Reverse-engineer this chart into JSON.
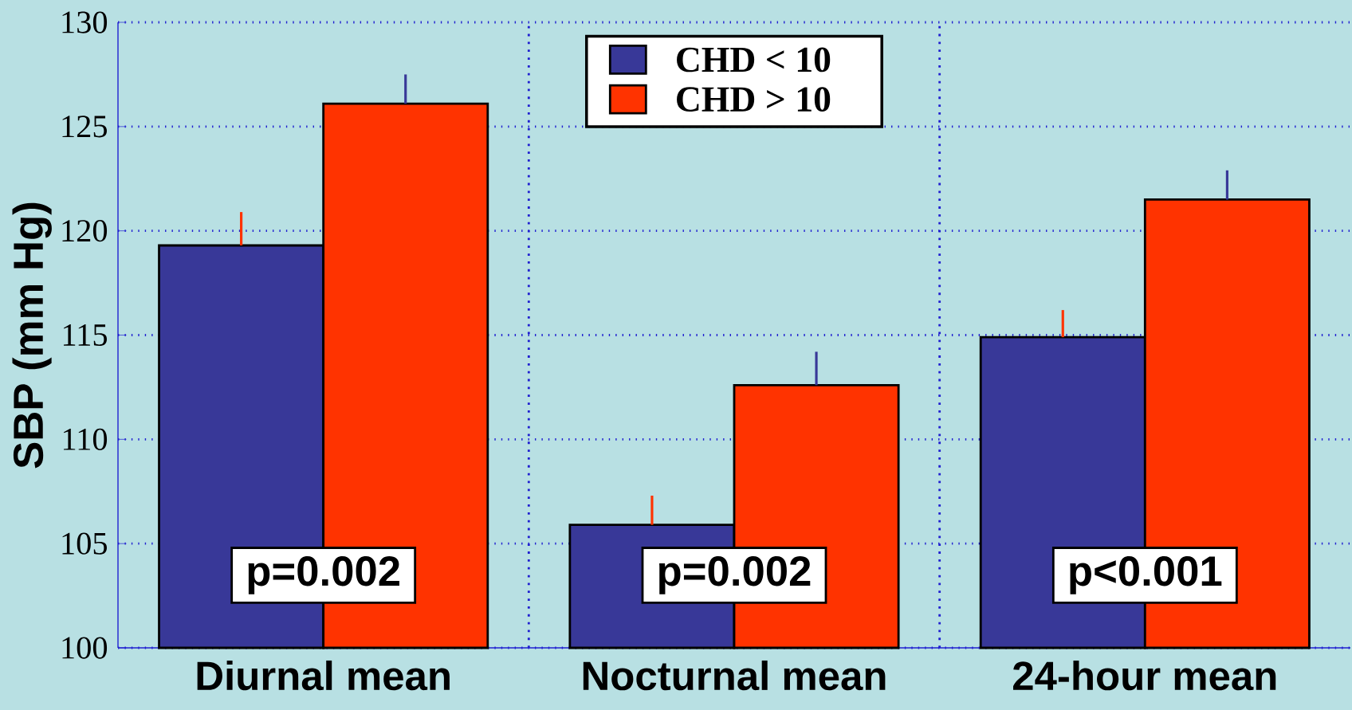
{
  "chart_data": {
    "type": "bar",
    "ylabel": "SBP (mm Hg)",
    "categories": [
      "Diurnal mean",
      "Nocturnal mean",
      "24-hour mean"
    ],
    "series": [
      {
        "name": "CHD < 10",
        "color": "#383898",
        "values": [
          119.3,
          105.9,
          114.9
        ],
        "errors": [
          [
            119.3,
            120.9
          ],
          [
            105.9,
            107.3
          ],
          [
            114.9,
            116.2
          ]
        ]
      },
      {
        "name": "CHD > 10",
        "color": "#ff3300",
        "values": [
          126.1,
          112.6,
          121.5
        ],
        "errors": [
          [
            126.1,
            127.5
          ],
          [
            112.6,
            114.2
          ],
          [
            121.5,
            122.9
          ]
        ]
      }
    ],
    "annotations": [
      "p=0.002",
      "p=0.002",
      "p<0.001"
    ],
    "ylim": [
      100,
      130
    ],
    "yticks": [
      100,
      105,
      110,
      115,
      120,
      125,
      130
    ],
    "grid": true,
    "legend": "top"
  }
}
